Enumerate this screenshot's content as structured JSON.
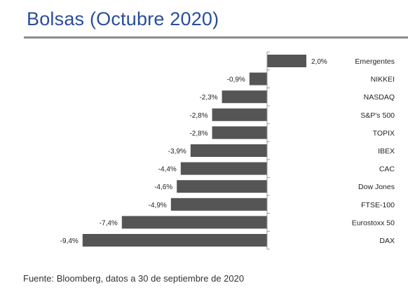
{
  "title": "Bolsas (Octubre 2020)",
  "source": "Fuente: Bloomberg, datos a 30 de septiembre de 2020",
  "colors": {
    "title": "#2a4d9c",
    "bar": "#555555",
    "rule": "#8c8c8c",
    "axis": "#999999"
  },
  "chart_data": {
    "type": "bar",
    "orientation": "horizontal",
    "categories": [
      "Emergentes",
      "NIKKEI",
      "NASDAQ",
      "S&P's 500",
      "TOPIX",
      "IBEX",
      "CAC",
      "Dow Jones",
      "FTSE-100",
      "Eurostoxx 50",
      "DAX"
    ],
    "values": [
      2.0,
      -0.9,
      -2.3,
      -2.8,
      -2.8,
      -3.9,
      -4.4,
      -4.6,
      -4.9,
      -7.4,
      -9.4
    ],
    "value_labels": [
      "2,0%",
      "-0,9%",
      "-2,3%",
      "-2,8%",
      "-2,8%",
      "-3,9%",
      "-4,4%",
      "-4,6%",
      "-4,9%",
      "-7,4%",
      "-9,4%"
    ],
    "unit": "%",
    "xlim": [
      -9.4,
      2.0
    ],
    "grid": false,
    "legend": "none"
  }
}
